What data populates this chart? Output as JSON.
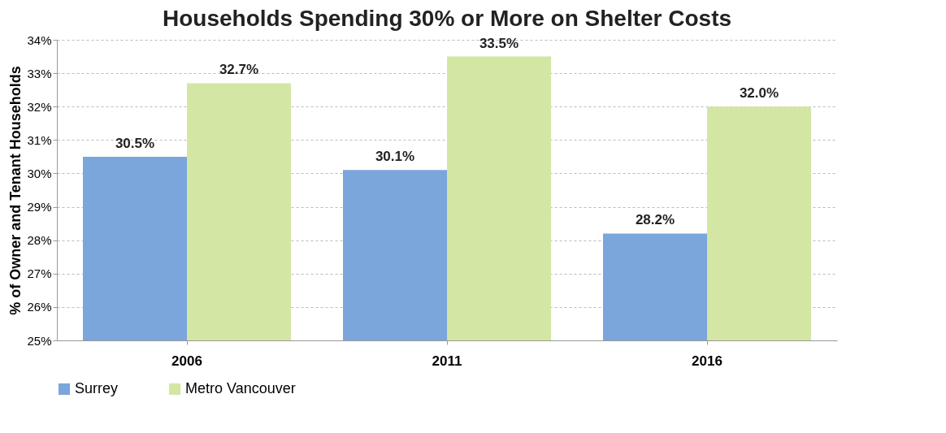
{
  "chart_data": {
    "type": "bar",
    "title": "Households Spending 30% or More on Shelter Costs",
    "ylabel": "% of Owner and Tenant Households",
    "categories": [
      "2006",
      "2011",
      "2016"
    ],
    "series": [
      {
        "name": "Surrey",
        "color": "#7aa6dc",
        "values": [
          30.5,
          30.1,
          28.2
        ],
        "value_labels": [
          "30.5%",
          "30.1%",
          "28.2%"
        ]
      },
      {
        "name": "Metro Vancouver",
        "color": "#d3e6a4",
        "values": [
          32.7,
          33.5,
          32.0
        ],
        "value_labels": [
          "32.7%",
          "33.5%",
          "32.0%"
        ]
      }
    ],
    "ylim": [
      25,
      34
    ],
    "yticks": [
      {
        "value": 25,
        "label": "25%"
      },
      {
        "value": 26,
        "label": "26%"
      },
      {
        "value": 27,
        "label": "27%"
      },
      {
        "value": 28,
        "label": "28%"
      },
      {
        "value": 29,
        "label": "29%"
      },
      {
        "value": 30,
        "label": "30%"
      },
      {
        "value": 31,
        "label": "31%"
      },
      {
        "value": 32,
        "label": "32%"
      },
      {
        "value": 33,
        "label": "33%"
      },
      {
        "value": 34,
        "label": "34%"
      }
    ],
    "grid": "y",
    "legend": "bottom"
  }
}
